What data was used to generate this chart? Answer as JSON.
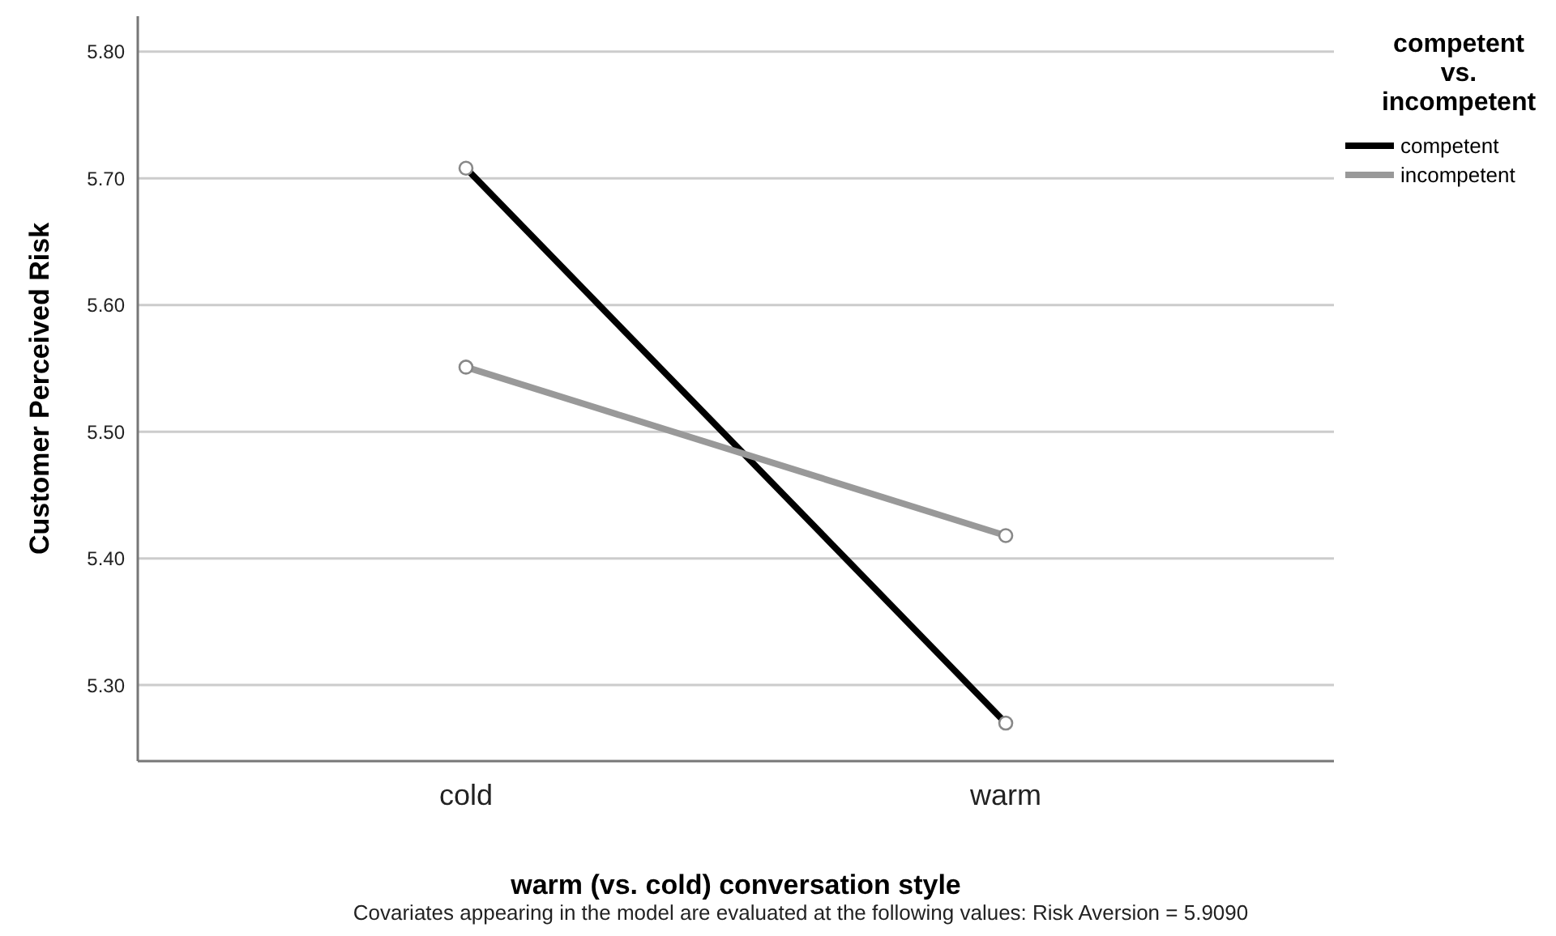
{
  "chart_data": {
    "type": "line",
    "xlabel": "warm (vs. cold) conversation style",
    "ylabel": "Customer Perceived Risk",
    "legend_title": "competent\nvs.\nincompetent",
    "categories": [
      "cold",
      "warm"
    ],
    "series": [
      {
        "name": "competent",
        "color": "#000000",
        "values": [
          5.708,
          5.27
        ]
      },
      {
        "name": "incompetent",
        "color": "#999999",
        "values": [
          5.551,
          5.418
        ]
      }
    ],
    "ylim": [
      5.24,
      5.828
    ],
    "yticks": [
      {
        "value": 5.3,
        "label": "5.30"
      },
      {
        "value": 5.4,
        "label": "5.40"
      },
      {
        "value": 5.5,
        "label": "5.50"
      },
      {
        "value": 5.6,
        "label": "5.60"
      },
      {
        "value": 5.7,
        "label": "5.70"
      },
      {
        "value": 5.8,
        "label": "5.80"
      }
    ],
    "grid": "y",
    "legend": "top right",
    "marker": "circle",
    "line_style": "solid",
    "annotations": [
      "Covariates appearing in the model are evaluated at the following values: Risk Aversion = 5.9090"
    ]
  }
}
